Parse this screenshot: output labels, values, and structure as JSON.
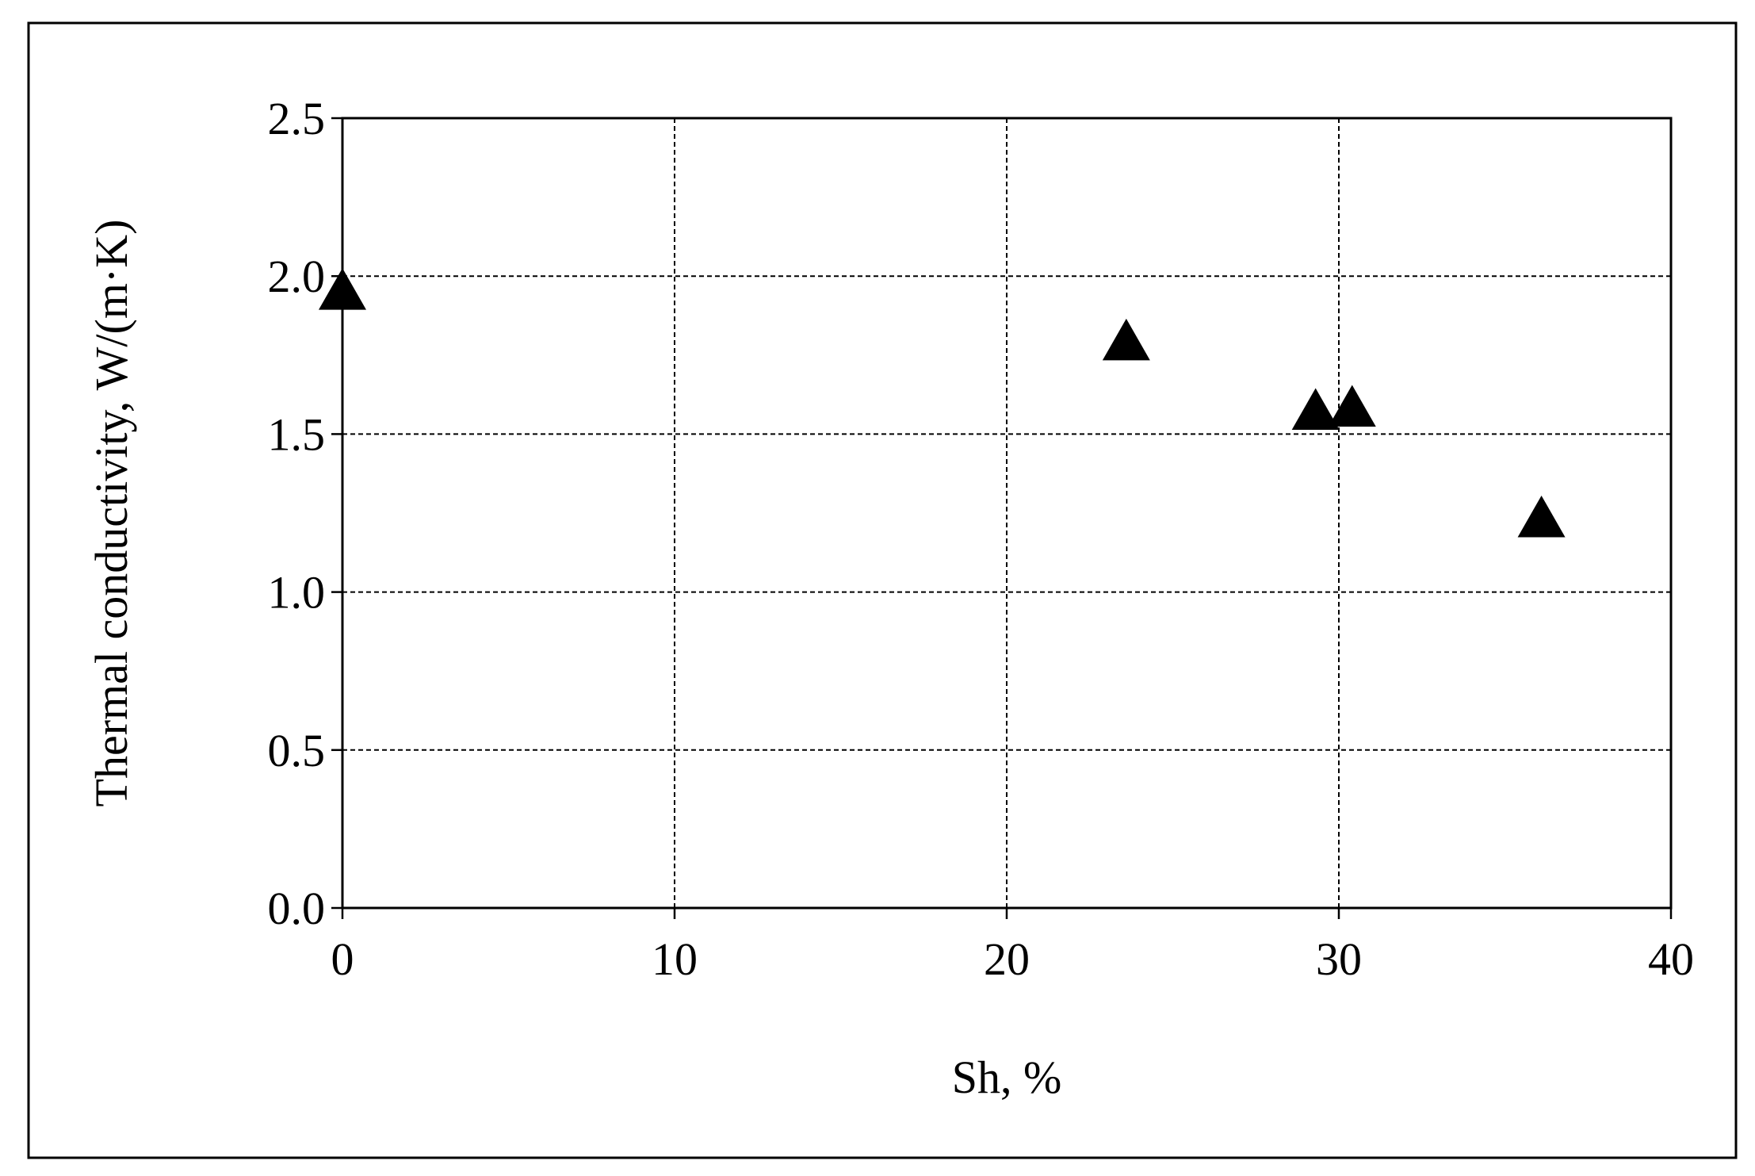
{
  "chart_data": {
    "type": "scatter",
    "x_label": "Sh, %",
    "y_label": "Thermal conductivity, W/(m·K)",
    "x": [
      0,
      23.6,
      29.3,
      30.4,
      36.1
    ],
    "values": [
      1.95,
      1.79,
      1.57,
      1.58,
      1.23
    ],
    "color": "#000000",
    "marker": "triangle",
    "xlim": [
      0,
      40
    ],
    "xticks": [
      0,
      10,
      20,
      30,
      40
    ],
    "ylim": [
      0,
      2.5
    ],
    "yticks": [
      {
        "value": 0,
        "label": "0.0"
      },
      0.5,
      {
        "value": 1,
        "label": "1.0"
      },
      1.5,
      {
        "value": 2,
        "label": "2.0"
      },
      2.5
    ],
    "grid": true
  }
}
